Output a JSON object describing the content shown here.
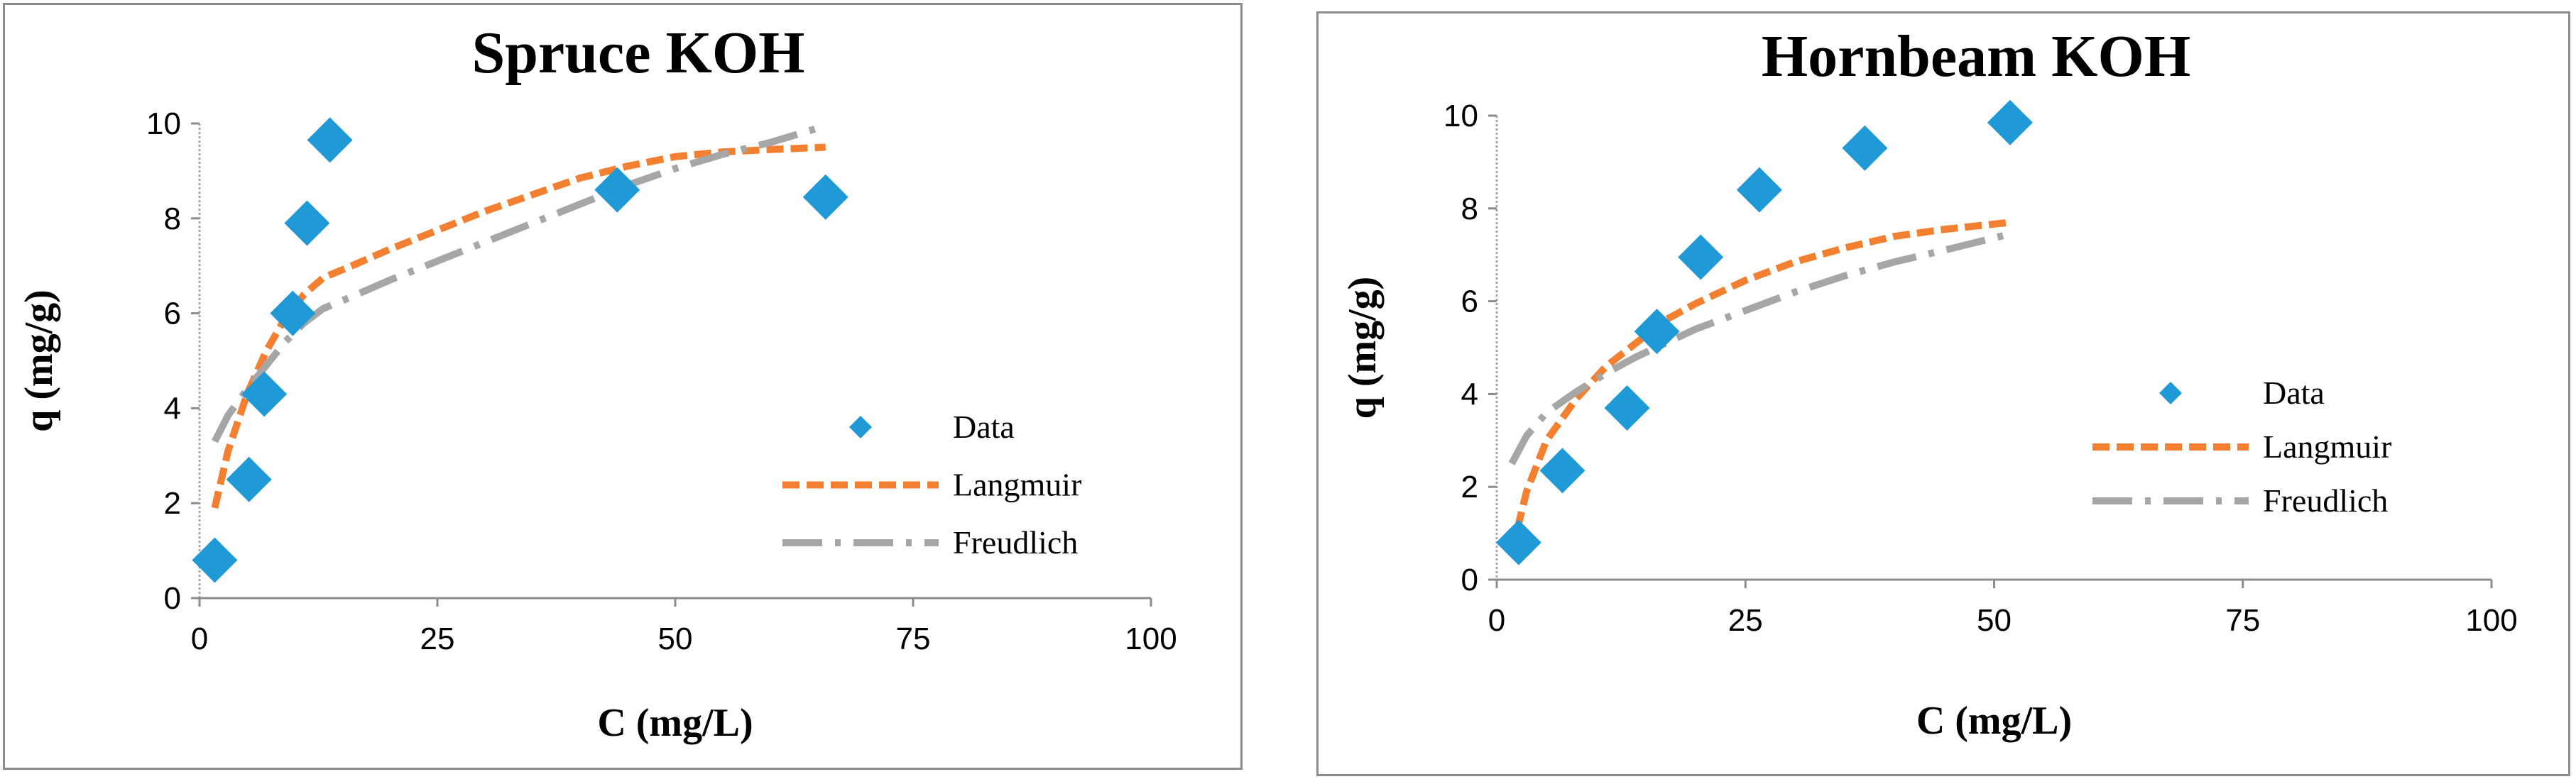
{
  "chart_data": [
    {
      "type": "scatter",
      "title": "Spruce KOH",
      "xlabel": "C (mg/L)",
      "ylabel": "q (mg/g)",
      "xlim": [
        0,
        100
      ],
      "ylim": [
        0,
        10
      ],
      "xticks": [
        0,
        25,
        50,
        75,
        100
      ],
      "yticks": [
        0,
        2,
        4,
        6,
        8,
        10
      ],
      "legend_position": "right",
      "series": [
        {
          "name": "Data",
          "kind": "points",
          "color": "#1f9ad6",
          "x": [
            1.6,
            5.2,
            6.8,
            9.8,
            11.3,
            13.7,
            43.9,
            65.8
          ],
          "y": [
            0.8,
            2.5,
            4.3,
            6.0,
            7.9,
            9.65,
            8.6,
            8.45
          ]
        },
        {
          "name": "Langmuir",
          "kind": "line",
          "color": "#f28030",
          "dash": "dashed",
          "x": [
            1.6,
            3,
            5,
            7,
            9,
            11,
            13,
            16,
            20,
            25,
            30,
            35,
            40,
            45,
            50,
            55,
            60,
            65.8
          ],
          "y": [
            1.9,
            3.1,
            4.3,
            5.2,
            5.9,
            6.4,
            6.75,
            7.0,
            7.35,
            7.75,
            8.15,
            8.5,
            8.85,
            9.1,
            9.3,
            9.4,
            9.45,
            9.5
          ]
        },
        {
          "name": "Freudlich",
          "kind": "line",
          "color": "#a6a6a6",
          "dash": "dashdot",
          "x": [
            1.6,
            3,
            5,
            7,
            9,
            11,
            13,
            16,
            20,
            25,
            30,
            35,
            40,
            45,
            50,
            55,
            60,
            65.8
          ],
          "y": [
            3.3,
            3.85,
            4.4,
            4.9,
            5.4,
            5.8,
            6.1,
            6.35,
            6.7,
            7.1,
            7.5,
            7.9,
            8.3,
            8.7,
            9.05,
            9.35,
            9.6,
            9.95
          ]
        }
      ]
    },
    {
      "type": "scatter",
      "title": "Hornbeam KOH",
      "xlabel": "C (mg/L)",
      "ylabel": "q (mg/g)",
      "xlim": [
        0,
        100
      ],
      "ylim": [
        0,
        10
      ],
      "xticks": [
        0,
        25,
        50,
        75,
        100
      ],
      "yticks": [
        0,
        2,
        4,
        6,
        8,
        10
      ],
      "legend_position": "right",
      "series": [
        {
          "name": "Data",
          "kind": "points",
          "color": "#1f9ad6",
          "x": [
            2.2,
            6.6,
            13.1,
            16.1,
            20.5,
            26.4,
            37.0,
            51.6
          ],
          "y": [
            0.8,
            2.35,
            3.7,
            5.35,
            6.95,
            8.4,
            9.3,
            9.85
          ]
        },
        {
          "name": "Langmuir",
          "kind": "line",
          "color": "#f28030",
          "dash": "dashed",
          "x": [
            1.5,
            3,
            5,
            8,
            11,
            14,
            17,
            20,
            25,
            30,
            35,
            40,
            45,
            51.6
          ],
          "y": [
            0.6,
            1.9,
            3.0,
            3.9,
            4.6,
            5.1,
            5.6,
            5.95,
            6.45,
            6.85,
            7.15,
            7.4,
            7.55,
            7.7
          ]
        },
        {
          "name": "Freudlich",
          "kind": "line",
          "color": "#a6a6a6",
          "dash": "dashdot",
          "x": [
            1.5,
            3,
            5,
            8,
            11,
            14,
            17,
            20,
            25,
            30,
            35,
            40,
            45,
            51.6
          ],
          "y": [
            2.5,
            3.1,
            3.6,
            4.05,
            4.45,
            4.8,
            5.1,
            5.4,
            5.8,
            6.2,
            6.55,
            6.85,
            7.1,
            7.45
          ]
        }
      ]
    }
  ]
}
